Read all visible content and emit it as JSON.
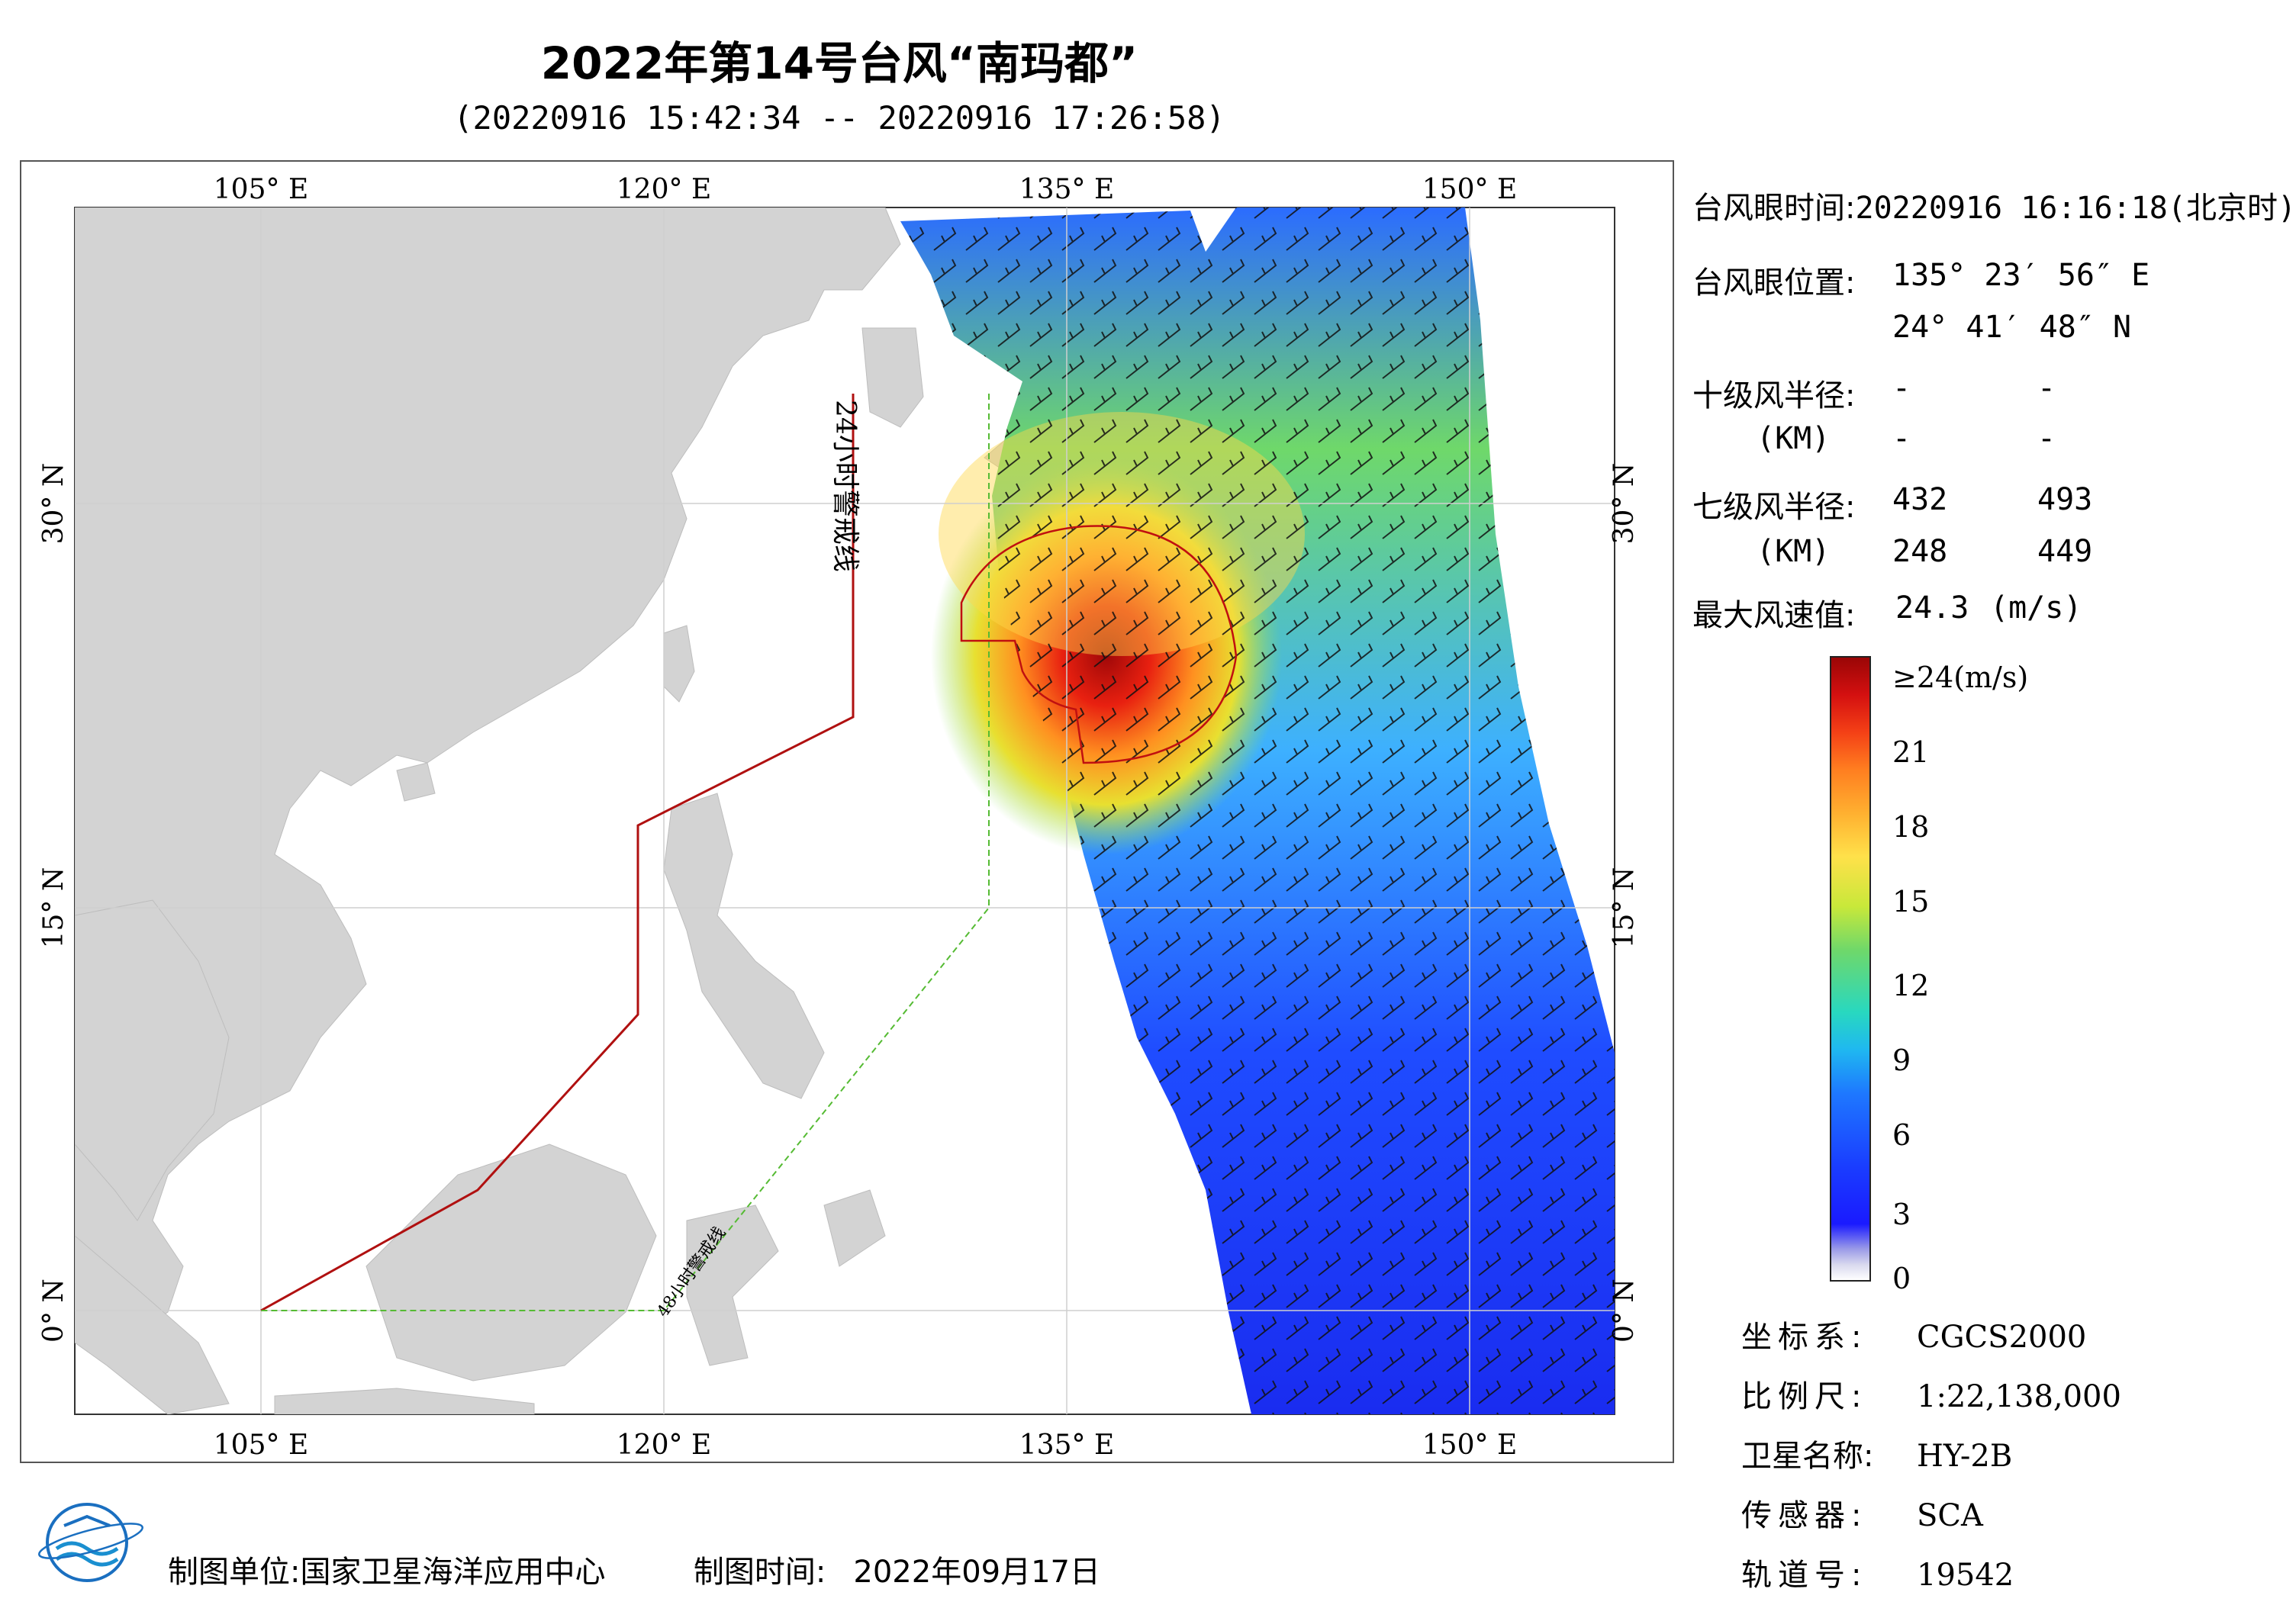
{
  "header": {
    "title": "2022年第14号台风“南玛都”",
    "subtitle": "(20220916 15:42:34 -- 20220916 17:26:58)"
  },
  "map": {
    "lon_labels": [
      "105° E",
      "120° E",
      "135° E",
      "150° E"
    ],
    "lat_labels": [
      "30° N",
      "15° N",
      "0° N"
    ],
    "warning_line_24h": "24小时警戒线",
    "warning_line_48h": "48小时警戒线",
    "colors": {
      "land": "#d3d3d3",
      "ocean": "#ffffff",
      "warning_24h": "#b01010",
      "warning_48h": "#55bb33",
      "radius7": "#c01010"
    }
  },
  "info": {
    "eye_time_label": "台风眼时间:",
    "eye_time_value": "20220916 16:16:18(北京时)",
    "eye_pos_label": "台风眼位置:",
    "eye_lon": "135° 23′ 56″ E",
    "eye_lat": "24° 41′ 48″ N",
    "r10_label": "十级风半径:",
    "r10_unit": "(KM)",
    "r10_values": [
      "-",
      "-",
      "-",
      "-"
    ],
    "r7_label": "七级风半径:",
    "r7_unit": "(KM)",
    "r7_values": [
      "432",
      "493",
      "248",
      "449"
    ],
    "max_wind_label": "最大风速值:",
    "max_wind_value": "24.3",
    "max_wind_unit": "(m/s)"
  },
  "legend": {
    "ticks": [
      "≥24(m/s)",
      "21",
      "18",
      "15",
      "12",
      "9",
      "6",
      "3",
      "0"
    ]
  },
  "meta": {
    "crs_label": "坐标系:",
    "crs_value": "CGCS2000",
    "scale_label": "比例尺:",
    "scale_value": "1:22,138,000",
    "satellite_label": "卫星名称:",
    "satellite_value": "HY-2B",
    "sensor_label": "传感器:",
    "sensor_value": "SCA",
    "orbit_label": "轨道号:",
    "orbit_value": "19542"
  },
  "footer": {
    "producer_label": "制图单位:",
    "producer_value": "国家卫星海洋应用中心",
    "date_label": "制图时间:",
    "date_value": "2022年09月17日"
  }
}
